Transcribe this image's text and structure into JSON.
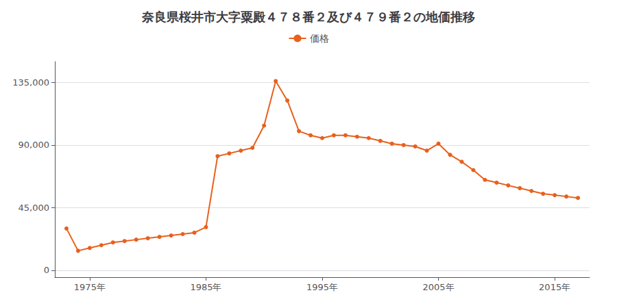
{
  "chart_data": {
    "type": "line",
    "title": "奈良県桜井市大字粟殿４７８番２及び４７９番２の地価推移",
    "x": [
      1973,
      1974,
      1975,
      1976,
      1977,
      1978,
      1979,
      1980,
      1981,
      1982,
      1983,
      1984,
      1985,
      1986,
      1987,
      1988,
      1989,
      1990,
      1991,
      1992,
      1993,
      1994,
      1995,
      1996,
      1997,
      1998,
      1999,
      2000,
      2001,
      2002,
      2003,
      2004,
      2005,
      2006,
      2007,
      2008,
      2009,
      2010,
      2011,
      2012,
      2013,
      2014,
      2015,
      2016,
      2017
    ],
    "series": [
      {
        "name": "価格",
        "color": "#e8601c",
        "marker": "circle",
        "values": [
          30000,
          14000,
          16000,
          18000,
          20000,
          21000,
          22000,
          23000,
          24000,
          25000,
          26000,
          27000,
          31000,
          82000,
          84000,
          86000,
          88000,
          104000,
          136000,
          122000,
          100000,
          97000,
          95000,
          97000,
          97000,
          96000,
          95000,
          93000,
          91000,
          90000,
          89000,
          86000,
          91000,
          83000,
          78000,
          72000,
          65000,
          63000,
          61000,
          59000,
          57000,
          55000,
          54000,
          53000,
          52000
        ]
      }
    ],
    "xlim": [
      1972,
      2018
    ],
    "xticks": [
      {
        "value": 1975,
        "label": "1975年"
      },
      {
        "value": 1985,
        "label": "1985年"
      },
      {
        "value": 1995,
        "label": "1995年"
      },
      {
        "value": 2005,
        "label": "2005年"
      },
      {
        "value": 2015,
        "label": "2015年"
      }
    ],
    "ylim": [
      -5000,
      150000
    ],
    "yticks": [
      0,
      {
        "value": 45000,
        "label": "45,000"
      },
      {
        "value": 90000,
        "label": "90,000"
      },
      {
        "value": 135000,
        "label": "135,000"
      }
    ],
    "grid": true,
    "legend": "top"
  }
}
